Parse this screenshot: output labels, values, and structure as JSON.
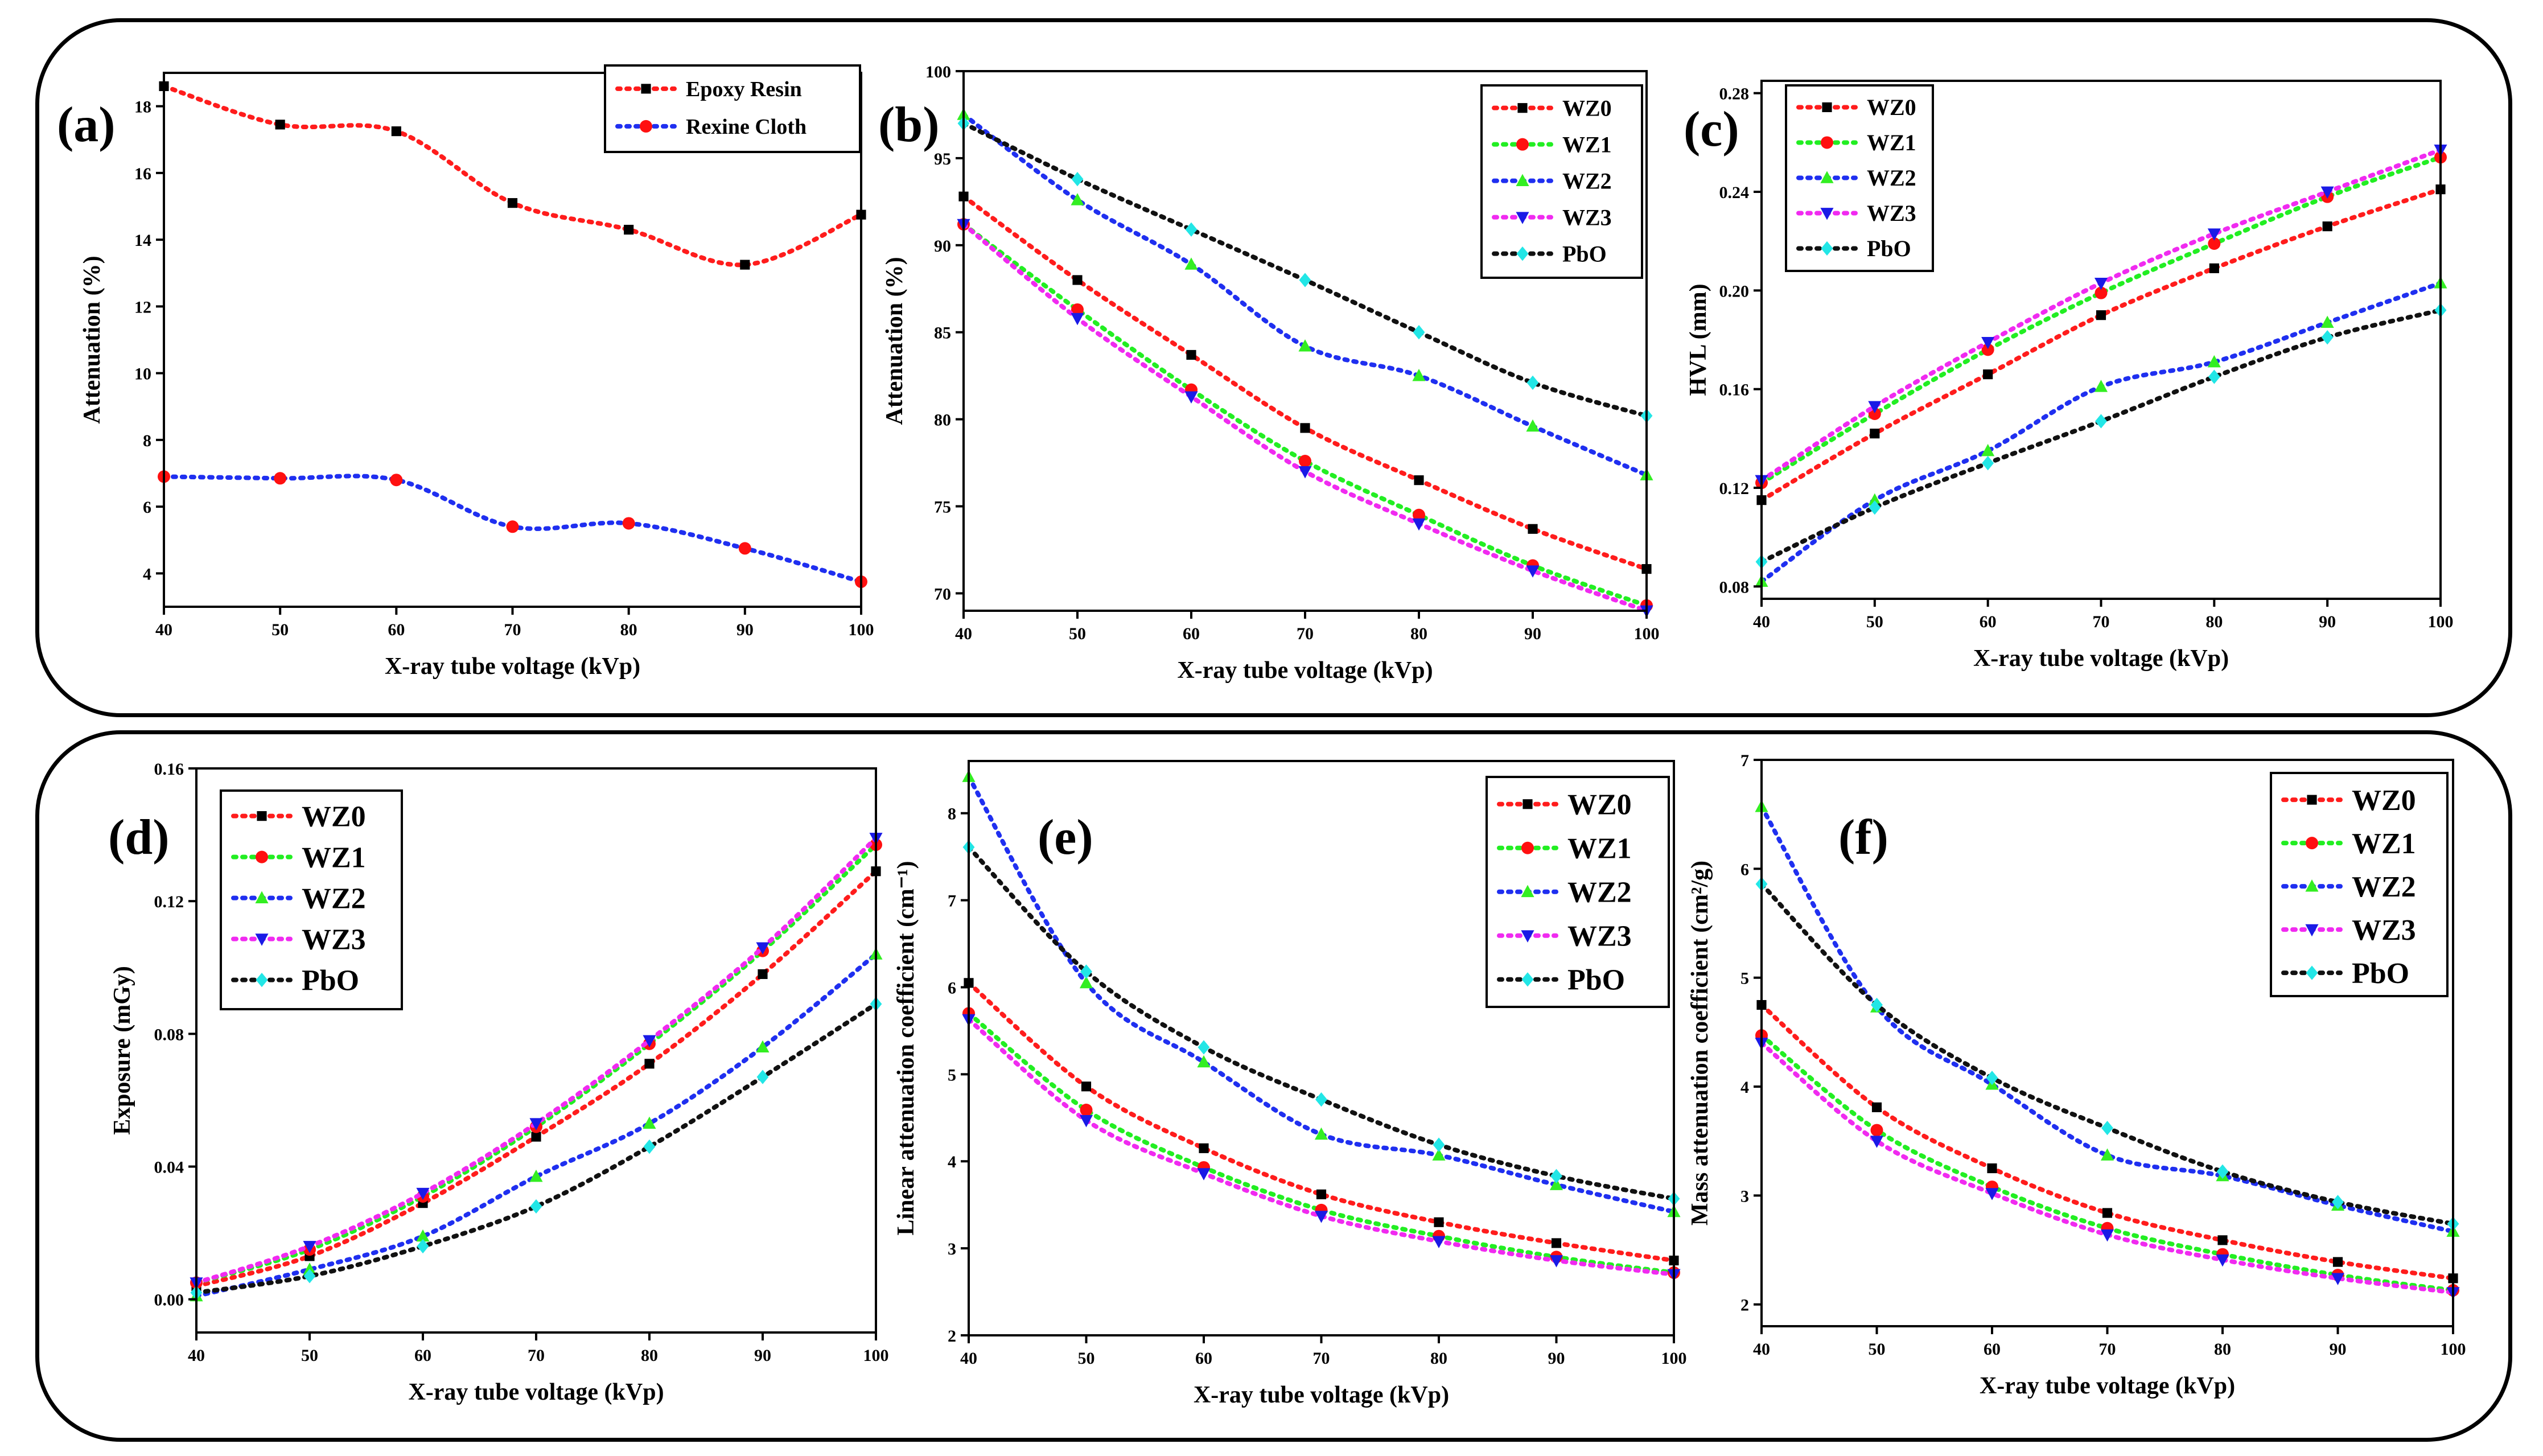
{
  "colors": {
    "WZ0": "#ff1c1c",
    "WZ1": "#22ee22",
    "WZ2": "#1f2ff0",
    "WZ3": "#f02af0",
    "PbO": "#111111",
    "marker_black": "#000000",
    "marker_red": "#ff1010",
    "marker_green": "#33ee22",
    "marker_blue": "#1a1ae6",
    "marker_cyan": "#22e6e6"
  },
  "chart_data": [
    {
      "id": "a",
      "type": "line",
      "panel_label": "(a)",
      "xlabel": "X-ray tube voltage (kVp)",
      "ylabel": "Attenuation (%)",
      "xlim": [
        40,
        100
      ],
      "ylim": [
        3,
        19
      ],
      "xticks": [
        40,
        50,
        60,
        70,
        80,
        90,
        100
      ],
      "yticks": [
        4,
        6,
        8,
        10,
        12,
        14,
        16,
        18
      ],
      "legend_position": "top-right",
      "x": [
        40,
        50,
        60,
        70,
        80,
        90,
        100
      ],
      "series": [
        {
          "name": "Epoxy Resin",
          "line_color": "#ff1c1c",
          "marker": "square",
          "marker_color": "#000000",
          "values": [
            18.6,
            17.45,
            17.25,
            15.1,
            14.3,
            13.25,
            14.75
          ]
        },
        {
          "name": "Rexine Cloth",
          "line_color": "#1f2ff0",
          "marker": "circle",
          "marker_color": "#ff1010",
          "values": [
            6.9,
            6.85,
            6.8,
            5.4,
            5.5,
            4.75,
            3.75
          ]
        }
      ]
    },
    {
      "id": "b",
      "type": "line",
      "panel_label": "(b)",
      "xlabel": "X-ray tube voltage (kVp)",
      "ylabel": "Attenuation (%)",
      "xlim": [
        40,
        100
      ],
      "ylim": [
        69,
        100
      ],
      "xticks": [
        40,
        50,
        60,
        70,
        80,
        90,
        100
      ],
      "yticks": [
        70,
        75,
        80,
        85,
        90,
        95,
        100
      ],
      "legend_position": "top-right",
      "x": [
        40,
        50,
        60,
        70,
        80,
        90,
        100
      ],
      "series": [
        {
          "name": "WZ0",
          "line_color": "#ff1c1c",
          "marker": "square",
          "marker_color": "#000000",
          "values": [
            92.8,
            88.0,
            83.7,
            79.5,
            76.5,
            73.7,
            71.4
          ]
        },
        {
          "name": "WZ1",
          "line_color": "#22ee22",
          "marker": "circle",
          "marker_color": "#ff1010",
          "values": [
            91.2,
            86.3,
            81.7,
            77.6,
            74.5,
            71.6,
            69.3
          ]
        },
        {
          "name": "WZ2",
          "line_color": "#1f2ff0",
          "marker": "triangle-up",
          "marker_color": "#33ee22",
          "values": [
            97.5,
            92.6,
            88.9,
            84.2,
            82.5,
            79.6,
            76.8
          ]
        },
        {
          "name": "WZ3",
          "line_color": "#f02af0",
          "marker": "triangle-down",
          "marker_color": "#1a1ae6",
          "values": [
            91.2,
            85.8,
            81.3,
            77.0,
            74.0,
            71.3,
            69.0
          ]
        },
        {
          "name": "PbO",
          "line_color": "#111111",
          "marker": "diamond",
          "marker_color": "#22e6e6",
          "values": [
            97.0,
            93.8,
            90.9,
            88.0,
            85.0,
            82.1,
            80.2
          ]
        }
      ]
    },
    {
      "id": "c",
      "type": "line",
      "panel_label": "(c)",
      "xlabel": "X-ray tube voltage (kVp)",
      "ylabel": "HVL (mm)",
      "xlim": [
        40,
        100
      ],
      "ylim": [
        0.075,
        0.285
      ],
      "xticks": [
        40,
        50,
        60,
        70,
        80,
        90,
        100
      ],
      "yticks": [
        0.08,
        0.12,
        0.16,
        0.2,
        0.24,
        0.28
      ],
      "ytick_decimals": 2,
      "legend_position": "top-left",
      "x": [
        40,
        50,
        60,
        70,
        80,
        90,
        100
      ],
      "series": [
        {
          "name": "WZ0",
          "line_color": "#ff1c1c",
          "marker": "square",
          "marker_color": "#000000",
          "values": [
            0.115,
            0.142,
            0.166,
            0.19,
            0.209,
            0.226,
            0.241
          ]
        },
        {
          "name": "WZ1",
          "line_color": "#22ee22",
          "marker": "circle",
          "marker_color": "#ff1010",
          "values": [
            0.122,
            0.15,
            0.176,
            0.199,
            0.219,
            0.238,
            0.254
          ]
        },
        {
          "name": "WZ2",
          "line_color": "#1f2ff0",
          "marker": "triangle-up",
          "marker_color": "#33ee22",
          "values": [
            0.082,
            0.115,
            0.135,
            0.161,
            0.171,
            0.187,
            0.203
          ]
        },
        {
          "name": "WZ3",
          "line_color": "#f02af0",
          "marker": "triangle-down",
          "marker_color": "#1a1ae6",
          "values": [
            0.123,
            0.153,
            0.179,
            0.203,
            0.223,
            0.24,
            0.257
          ]
        },
        {
          "name": "PbO",
          "line_color": "#111111",
          "marker": "diamond",
          "marker_color": "#22e6e6",
          "values": [
            0.09,
            0.112,
            0.13,
            0.147,
            0.165,
            0.181,
            0.192
          ]
        }
      ]
    },
    {
      "id": "d",
      "type": "line",
      "panel_label": "(d)",
      "xlabel": "X-ray tube voltage (kVp)",
      "ylabel": "Exposure (mGy)",
      "xlim": [
        40,
        100
      ],
      "ylim": [
        -0.01,
        0.16
      ],
      "xticks": [
        40,
        50,
        60,
        70,
        80,
        90,
        100
      ],
      "yticks": [
        0.0,
        0.04,
        0.08,
        0.12,
        0.16
      ],
      "ytick_decimals": 2,
      "legend_position": "top-left",
      "x": [
        40,
        50,
        60,
        70,
        80,
        90,
        100
      ],
      "series": [
        {
          "name": "WZ0",
          "line_color": "#ff1c1c",
          "marker": "square",
          "marker_color": "#000000",
          "values": [
            0.004,
            0.013,
            0.029,
            0.049,
            0.071,
            0.098,
            0.129
          ]
        },
        {
          "name": "WZ1",
          "line_color": "#22ee22",
          "marker": "circle",
          "marker_color": "#ff1010",
          "values": [
            0.005,
            0.015,
            0.031,
            0.052,
            0.077,
            0.105,
            0.137
          ]
        },
        {
          "name": "WZ2",
          "line_color": "#1f2ff0",
          "marker": "triangle-up",
          "marker_color": "#33ee22",
          "values": [
            0.001,
            0.009,
            0.019,
            0.037,
            0.053,
            0.076,
            0.104
          ]
        },
        {
          "name": "WZ3",
          "line_color": "#f02af0",
          "marker": "triangle-down",
          "marker_color": "#1a1ae6",
          "values": [
            0.005,
            0.016,
            0.032,
            0.053,
            0.078,
            0.106,
            0.139
          ]
        },
        {
          "name": "PbO",
          "line_color": "#111111",
          "marker": "diamond",
          "marker_color": "#22e6e6",
          "values": [
            0.002,
            0.007,
            0.016,
            0.028,
            0.046,
            0.067,
            0.089
          ]
        }
      ]
    },
    {
      "id": "e",
      "type": "line",
      "panel_label": "(e)",
      "xlabel": "X-ray tube voltage (kVp)",
      "ylabel": "Linear attenuation coefficient (cm⁻¹)",
      "xlim": [
        40,
        100
      ],
      "ylim": [
        2,
        8.6
      ],
      "xticks": [
        40,
        50,
        60,
        70,
        80,
        90,
        100
      ],
      "yticks": [
        2,
        3,
        4,
        5,
        6,
        7,
        8
      ],
      "legend_position": "top-right",
      "x": [
        40,
        50,
        60,
        70,
        80,
        90,
        100
      ],
      "series": [
        {
          "name": "WZ0",
          "line_color": "#ff1c1c",
          "marker": "square",
          "marker_color": "#000000",
          "values": [
            6.05,
            4.86,
            4.15,
            3.62,
            3.3,
            3.06,
            2.86
          ]
        },
        {
          "name": "WZ1",
          "line_color": "#22ee22",
          "marker": "circle",
          "marker_color": "#ff1010",
          "values": [
            5.7,
            4.59,
            3.93,
            3.44,
            3.14,
            2.9,
            2.72
          ]
        },
        {
          "name": "WZ2",
          "line_color": "#1f2ff0",
          "marker": "triangle-up",
          "marker_color": "#33ee22",
          "values": [
            8.42,
            6.05,
            5.14,
            4.31,
            4.07,
            3.73,
            3.42
          ]
        },
        {
          "name": "WZ3",
          "line_color": "#f02af0",
          "marker": "triangle-down",
          "marker_color": "#1a1ae6",
          "values": [
            5.63,
            4.47,
            3.86,
            3.37,
            3.08,
            2.86,
            2.7
          ]
        },
        {
          "name": "PbO",
          "line_color": "#111111",
          "marker": "diamond",
          "marker_color": "#22e6e6",
          "values": [
            7.61,
            6.18,
            5.31,
            4.71,
            4.19,
            3.83,
            3.57
          ]
        }
      ]
    },
    {
      "id": "f",
      "type": "line",
      "panel_label": "(f)",
      "xlabel": "X-ray tube voltage (kVp)",
      "ylabel": "Mass attenuation coefficient (cm²/g)",
      "xlim": [
        40,
        100
      ],
      "ylim": [
        1.8,
        7
      ],
      "xticks": [
        40,
        50,
        60,
        70,
        80,
        90,
        100
      ],
      "yticks": [
        2,
        3,
        4,
        5,
        6,
        7
      ],
      "legend_position": "top-right",
      "x": [
        40,
        50,
        60,
        70,
        80,
        90,
        100
      ],
      "series": [
        {
          "name": "WZ0",
          "line_color": "#ff1c1c",
          "marker": "square",
          "marker_color": "#000000",
          "values": [
            4.75,
            3.81,
            3.25,
            2.84,
            2.59,
            2.39,
            2.24
          ]
        },
        {
          "name": "WZ1",
          "line_color": "#22ee22",
          "marker": "circle",
          "marker_color": "#ff1010",
          "values": [
            4.47,
            3.6,
            3.08,
            2.7,
            2.46,
            2.27,
            2.13
          ]
        },
        {
          "name": "WZ2",
          "line_color": "#1f2ff0",
          "marker": "triangle-up",
          "marker_color": "#33ee22",
          "values": [
            6.57,
            4.73,
            4.02,
            3.37,
            3.18,
            2.91,
            2.67
          ]
        },
        {
          "name": "WZ3",
          "line_color": "#f02af0",
          "marker": "triangle-down",
          "marker_color": "#1a1ae6",
          "values": [
            4.4,
            3.5,
            3.02,
            2.64,
            2.41,
            2.24,
            2.11
          ]
        },
        {
          "name": "PbO",
          "line_color": "#111111",
          "marker": "diamond",
          "marker_color": "#22e6e6",
          "values": [
            5.86,
            4.75,
            4.08,
            3.62,
            3.22,
            2.94,
            2.74
          ]
        }
      ]
    }
  ]
}
